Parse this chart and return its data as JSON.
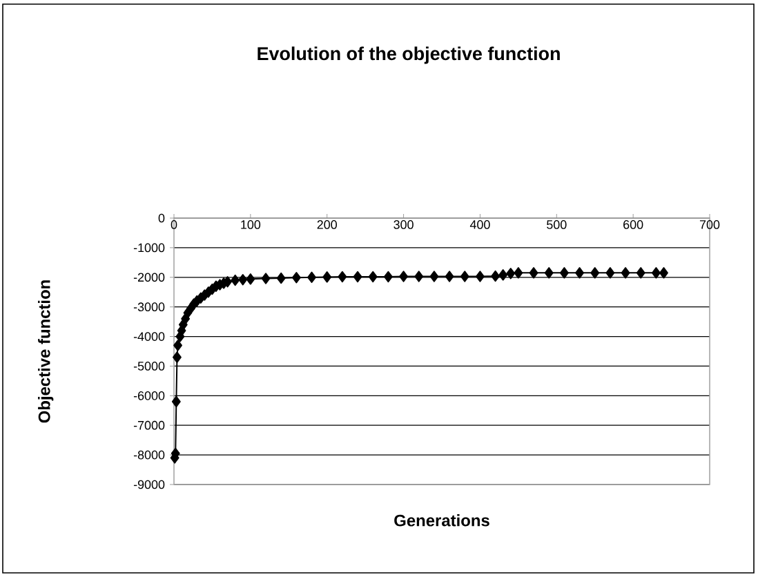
{
  "chart_data": {
    "type": "line",
    "title": "Evolution of the objective function",
    "xlabel": "Generations",
    "ylabel": "Objective function",
    "xlim": [
      0,
      700
    ],
    "xticks": [
      0,
      100,
      200,
      300,
      400,
      500,
      600,
      700
    ],
    "ylim": [
      -9000,
      0
    ],
    "yticks": [
      -9000,
      -8000,
      -7000,
      -6000,
      -5000,
      -4000,
      -3000,
      -2000,
      -1000,
      0
    ],
    "grid": "y",
    "marker": "diamond",
    "line_style": "solid",
    "series": [
      {
        "color": "#000000",
        "x": [
          1,
          2,
          3,
          4,
          5,
          8,
          10,
          12,
          15,
          18,
          22,
          26,
          30,
          35,
          40,
          45,
          50,
          55,
          60,
          65,
          70,
          80,
          90,
          100,
          120,
          140,
          160,
          180,
          200,
          220,
          240,
          260,
          280,
          300,
          320,
          340,
          360,
          380,
          400,
          420,
          430,
          440,
          450,
          470,
          490,
          510,
          530,
          550,
          570,
          590,
          610,
          630,
          640
        ],
        "values": [
          -8100,
          -7950,
          -6200,
          -4700,
          -4300,
          -4000,
          -3800,
          -3600,
          -3400,
          -3200,
          -3050,
          -2900,
          -2800,
          -2700,
          -2600,
          -2500,
          -2400,
          -2300,
          -2250,
          -2200,
          -2150,
          -2100,
          -2080,
          -2060,
          -2040,
          -2030,
          -2010,
          -2000,
          -1990,
          -1980,
          -1980,
          -1980,
          -1980,
          -1970,
          -1970,
          -1970,
          -1970,
          -1970,
          -1970,
          -1960,
          -1920,
          -1870,
          -1850,
          -1850,
          -1850,
          -1850,
          -1850,
          -1850,
          -1850,
          -1850,
          -1850,
          -1850,
          -1850
        ]
      }
    ]
  }
}
